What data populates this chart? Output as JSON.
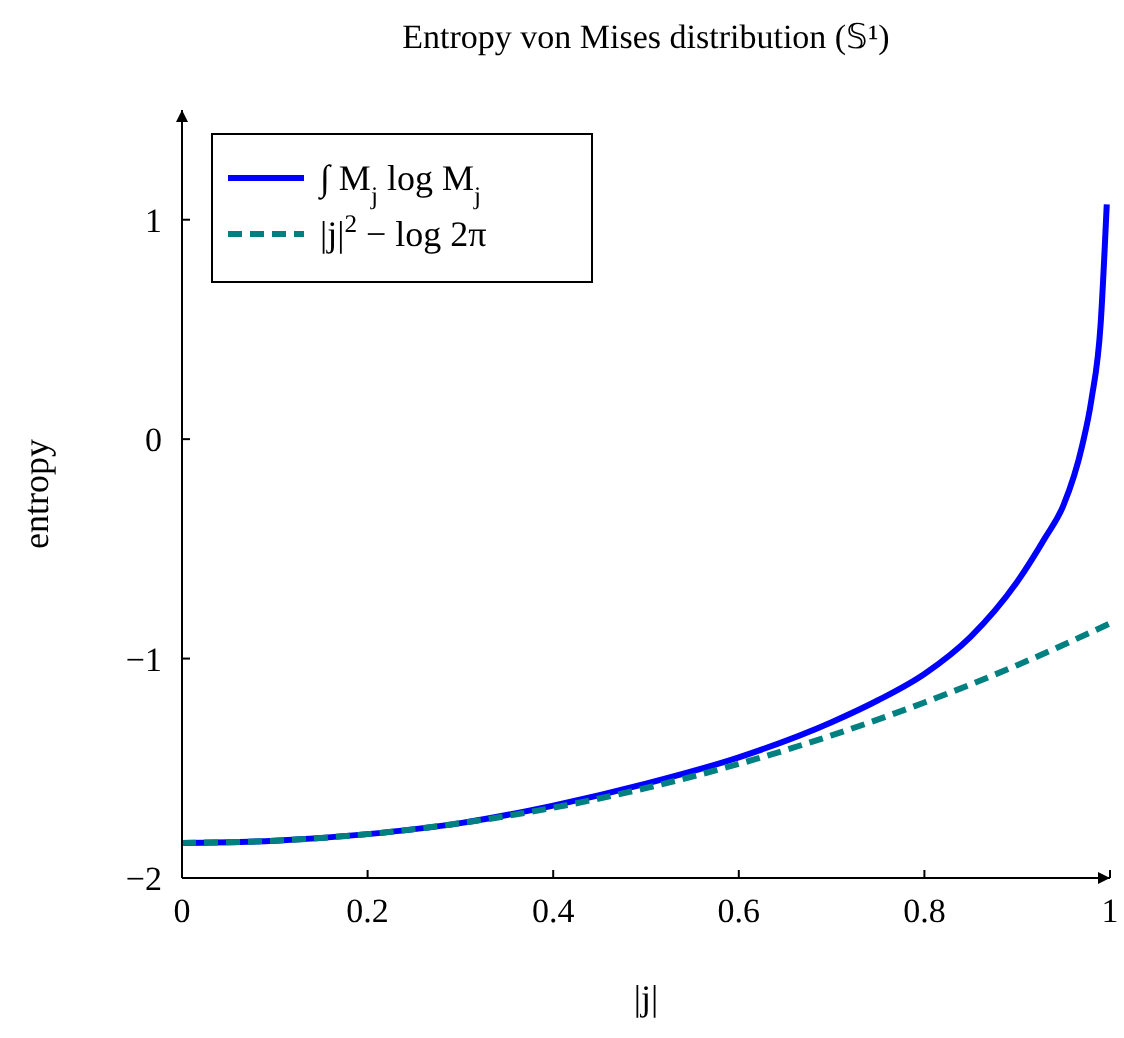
{
  "chart_data": {
    "type": "line",
    "title": "Entropy von Mises distribution (𝕊¹)",
    "xlabel": "|j|",
    "ylabel": "entropy",
    "xlim": [
      0,
      1
    ],
    "ylim": [
      -2,
      1.5
    ],
    "xticks": [
      0,
      0.2,
      0.4,
      0.6,
      0.8,
      1
    ],
    "yticks": [
      {
        "value": -2,
        "label": "−2"
      },
      {
        "value": -1,
        "label": "−1"
      },
      0,
      1
    ],
    "grid": false,
    "legend": "top left",
    "series": [
      {
        "name": "∫ M$_{j}$ log M$_{j}$",
        "color": "#0000ff",
        "line_style": "solid",
        "x": [
          0,
          0.1,
          0.2,
          0.3,
          0.4,
          0.5,
          0.6,
          0.7,
          0.75,
          0.8,
          0.85,
          0.9,
          0.93,
          0.95,
          0.97,
          0.98,
          0.99,
          0.9965
        ],
        "values": [
          -1.84,
          -1.83,
          -1.8,
          -1.75,
          -1.67,
          -1.57,
          -1.45,
          -1.29,
          -1.19,
          -1.07,
          -0.9,
          -0.65,
          -0.45,
          -0.3,
          -0.03,
          0.18,
          0.53,
          1.07
        ]
      },
      {
        "name": "|j|$^{2}$ − log 2π",
        "color": "#008080",
        "line_style": "dashed",
        "x": [
          0,
          0.1,
          0.2,
          0.3,
          0.4,
          0.5,
          0.6,
          0.7,
          0.8,
          0.9,
          1
        ],
        "values": [
          -1.84,
          -1.83,
          -1.8,
          -1.75,
          -1.68,
          -1.59,
          -1.48,
          -1.35,
          -1.2,
          -1.03,
          -0.84
        ]
      }
    ]
  }
}
